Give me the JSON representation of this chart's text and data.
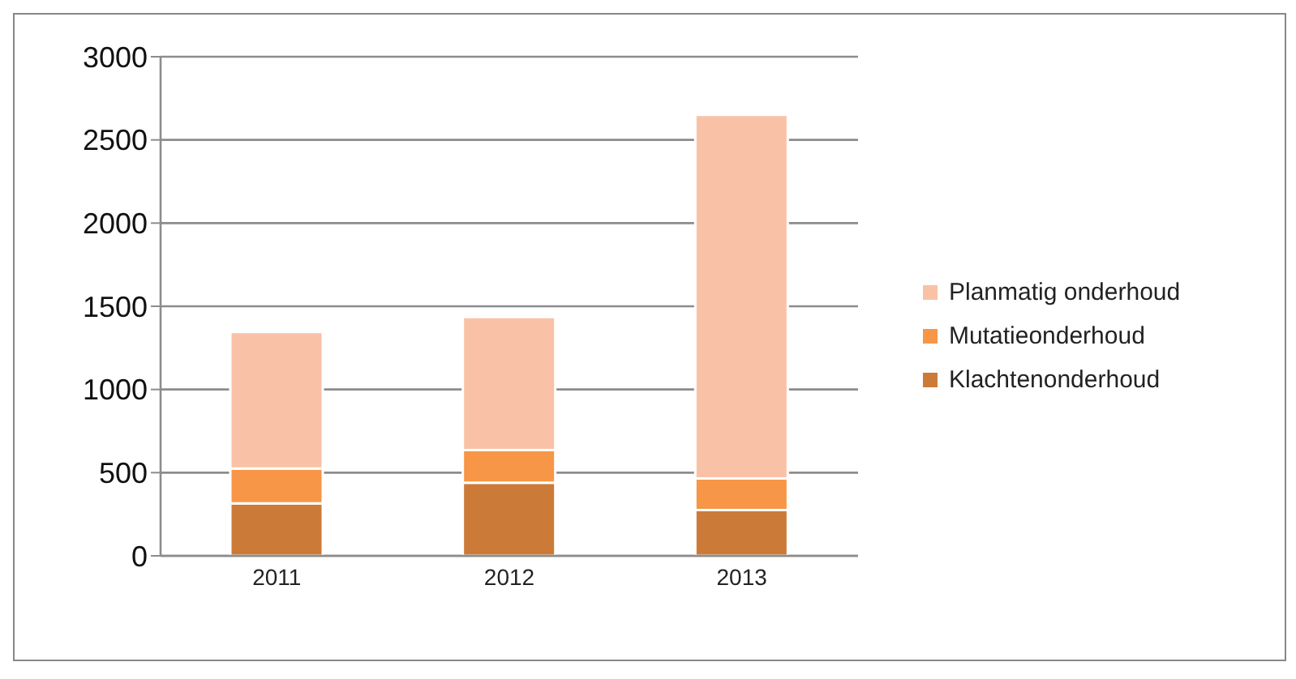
{
  "chart_data": {
    "type": "bar",
    "stacked": true,
    "categories": [
      "2011",
      "2012",
      "2013"
    ],
    "series": [
      {
        "name": "Klachtenonderhoud",
        "color": "#cc7a38",
        "values": [
          315,
          440,
          275
        ]
      },
      {
        "name": "Mutatieonderhoud",
        "color": "#f79646",
        "values": [
          210,
          195,
          190
        ]
      },
      {
        "name": "Planmatig onderhoud",
        "color": "#f9c2a6",
        "values": [
          820,
          800,
          2185
        ]
      }
    ],
    "ylim": [
      0,
      3000
    ],
    "yticks": [
      0,
      500,
      1000,
      1500,
      2000,
      2500,
      3000
    ],
    "grid": "y",
    "legend": "right"
  }
}
